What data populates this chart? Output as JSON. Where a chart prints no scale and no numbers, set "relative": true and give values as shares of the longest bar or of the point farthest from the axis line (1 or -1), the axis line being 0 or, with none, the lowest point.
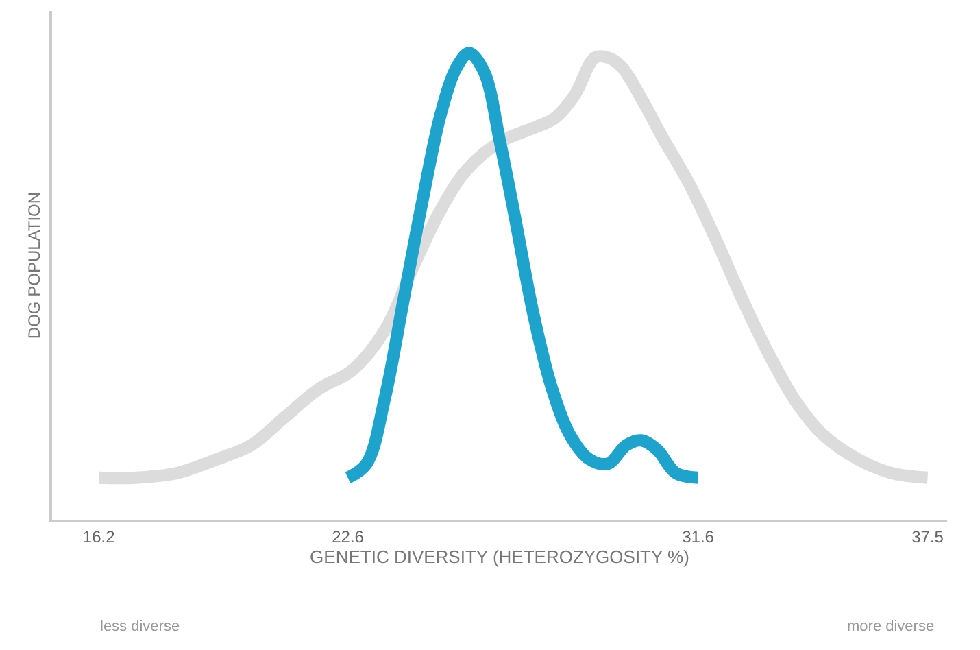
{
  "chart_data": {
    "type": "line",
    "relative": true,
    "xlabel": "GENETIC DIVERSITY (HETEROZYGOSITY %)",
    "ylabel": "DOG POPULATION",
    "xlim": [
      15.0,
      38.0
    ],
    "xticks": [
      16.2,
      22.6,
      31.6,
      37.5
    ],
    "marker": "none",
    "line_style": "solid",
    "series": [
      {
        "color": "#dcdcdc",
        "x": [
          16.2,
          17.17,
          18.21,
          19.25,
          20.12,
          20.98,
          21.85,
          22.71,
          23.58,
          24.27,
          24.96,
          25.66,
          26.52,
          27.39,
          27.91,
          28.43,
          28.95,
          29.29,
          29.64,
          30.16,
          30.68,
          31.37,
          32.06,
          32.75,
          33.45,
          34.14,
          34.84,
          35.7,
          36.57,
          37.5
        ],
        "values": [
          0.09,
          0.09,
          0.1,
          0.13,
          0.16,
          0.22,
          0.28,
          0.32,
          0.41,
          0.54,
          0.66,
          0.75,
          0.81,
          0.84,
          0.86,
          0.91,
          0.99,
          0.99,
          0.97,
          0.9,
          0.82,
          0.72,
          0.6,
          0.47,
          0.35,
          0.25,
          0.18,
          0.13,
          0.1,
          0.09
        ]
      },
      {
        "color": "#1da3cc",
        "x": [
          22.6,
          23.08,
          23.55,
          24.03,
          24.51,
          24.99,
          25.4,
          25.72,
          26.1,
          26.51,
          26.89,
          27.37,
          27.85,
          28.32,
          28.8,
          29.28,
          29.76,
          30.14,
          30.55,
          31.03,
          31.6
        ],
        "values": [
          0.09,
          0.12,
          0.26,
          0.47,
          0.68,
          0.87,
          0.97,
          1.0,
          0.96,
          0.81,
          0.65,
          0.44,
          0.28,
          0.18,
          0.13,
          0.12,
          0.16,
          0.17,
          0.15,
          0.1,
          0.09
        ]
      }
    ],
    "annotations": [
      "less diverse",
      "more diverse"
    ]
  }
}
